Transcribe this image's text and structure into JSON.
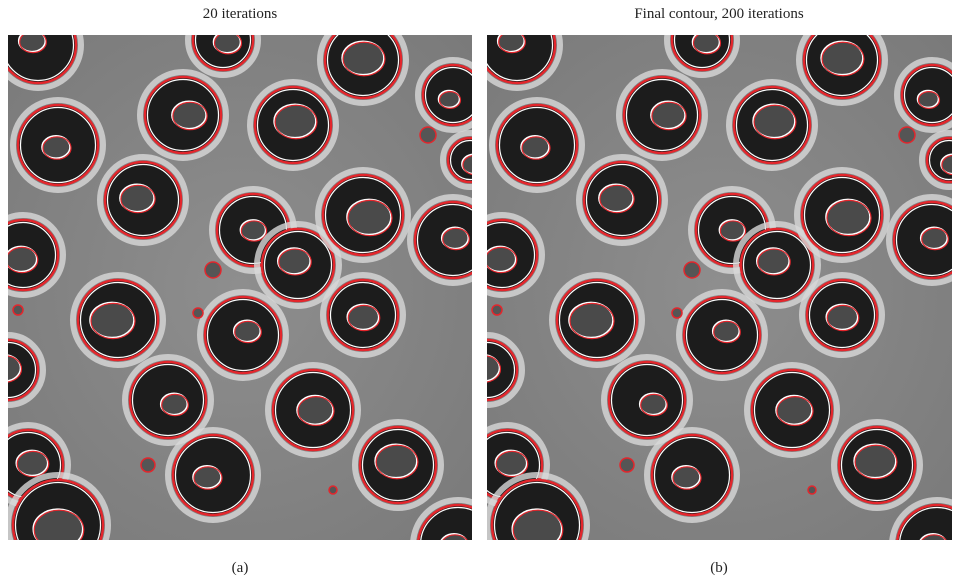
{
  "panels": [
    {
      "title": "20 iterations",
      "caption": "(a)"
    },
    {
      "title": "Final contour, 200 iterations",
      "caption": "(b)"
    }
  ]
}
